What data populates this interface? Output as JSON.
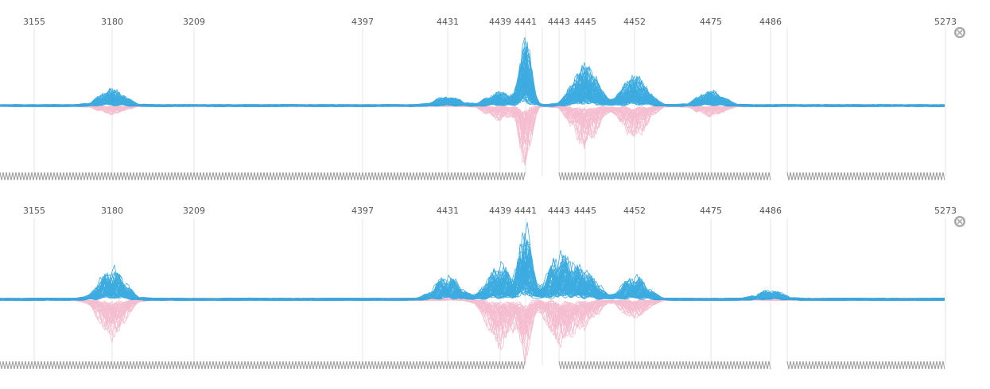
{
  "chart_data": [
    {
      "type": "line",
      "panel": "top",
      "ticks": [
        "3155",
        "3180",
        "3209",
        "4397",
        "4431",
        "4439",
        "4441",
        "4443",
        "4445",
        "4452",
        "4475",
        "4486",
        "5273"
      ],
      "series": [
        {
          "color": "#29a3dd",
          "trace_count": 60,
          "bursts": [
            {
              "at": 3180,
              "amp": 0.22
            },
            {
              "at": 4431,
              "amp": 0.12
            },
            {
              "at": 4439,
              "amp": 0.18
            },
            {
              "at": 4441,
              "amp": 0.92
            },
            {
              "at": 4445,
              "amp": 0.55
            },
            {
              "at": 4452,
              "amp": 0.4
            },
            {
              "at": 4475,
              "amp": 0.2
            }
          ]
        },
        {
          "color": "#f4b8cc",
          "trace_count": 35,
          "bursts": [
            {
              "at": 3180,
              "amp": 0.12
            },
            {
              "at": 4439,
              "amp": 0.2
            },
            {
              "at": 4441,
              "amp": 0.85
            },
            {
              "at": 4445,
              "amp": 0.55
            },
            {
              "at": 4452,
              "amp": 0.45
            },
            {
              "at": 4475,
              "amp": 0.15
            }
          ]
        }
      ],
      "ylim": [
        -1,
        1
      ],
      "grid": true
    },
    {
      "type": "line",
      "panel": "bottom",
      "ticks": [
        "3155",
        "3180",
        "3209",
        "4397",
        "4431",
        "4439",
        "4441",
        "4443",
        "4445",
        "4452",
        "4475",
        "4486",
        "5273"
      ],
      "series": [
        {
          "color": "#29a3dd",
          "trace_count": 60,
          "bursts": [
            {
              "at": 3180,
              "amp": 0.4
            },
            {
              "at": 4431,
              "amp": 0.3
            },
            {
              "at": 4439,
              "amp": 0.45
            },
            {
              "at": 4441,
              "amp": 1.0
            },
            {
              "at": 4443,
              "amp": 0.55
            },
            {
              "at": 4445,
              "amp": 0.35
            },
            {
              "at": 4452,
              "amp": 0.3
            },
            {
              "at": 4486,
              "amp": 0.12
            }
          ]
        },
        {
          "color": "#f4b8cc",
          "trace_count": 35,
          "bursts": [
            {
              "at": 3180,
              "amp": 0.5
            },
            {
              "at": 4439,
              "amp": 0.6
            },
            {
              "at": 4441,
              "amp": 0.7
            },
            {
              "at": 4443,
              "amp": 0.55
            },
            {
              "at": 4445,
              "amp": 0.3
            },
            {
              "at": 4452,
              "amp": 0.25
            }
          ]
        }
      ],
      "ylim": [
        -1,
        1
      ],
      "grid": true
    }
  ],
  "close_icon": "close-circle-icon",
  "colors": {
    "grid": "#e6e6e6",
    "tick_text": "#555555",
    "axis_band": "#9a9a9a",
    "close": "#a8a8a8"
  }
}
